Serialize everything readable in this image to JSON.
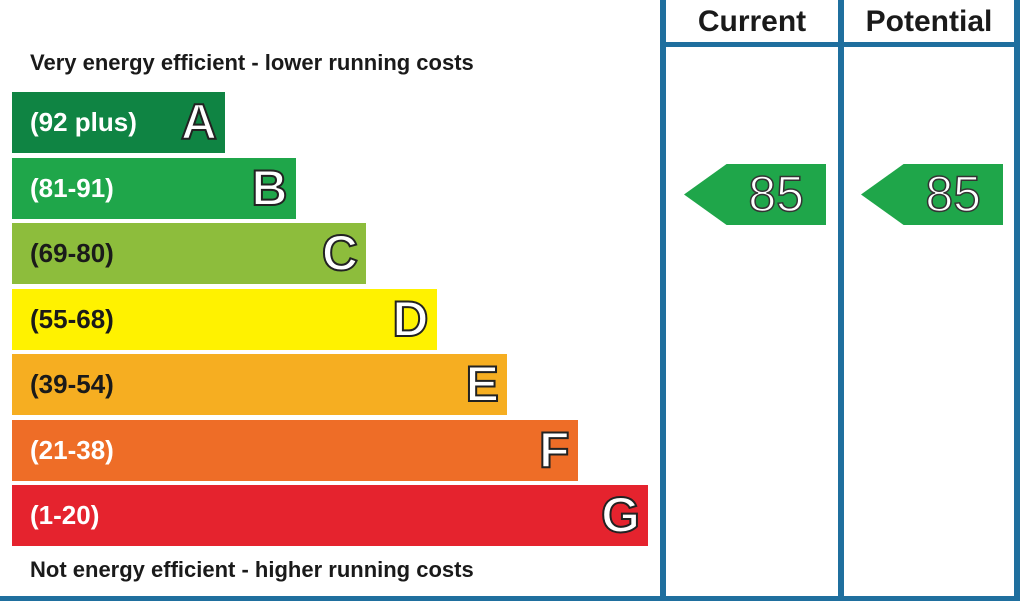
{
  "captions": {
    "top": "Very energy efficient - lower running costs",
    "bottom": "Not energy efficient - higher running costs"
  },
  "columns": {
    "current": "Current",
    "potential": "Potential"
  },
  "chart_data": {
    "type": "bar",
    "categories": [
      "A",
      "B",
      "C",
      "D",
      "E",
      "F",
      "G"
    ],
    "range_labels": [
      "(92 plus)",
      "(81-91)",
      "(69-80)",
      "(55-68)",
      "(39-54)",
      "(21-38)",
      "(1-20)"
    ],
    "band_colors": [
      "#0f8443",
      "#1fa64a",
      "#8dbd3c",
      "#fff200",
      "#f6ae21",
      "#ee6d27",
      "#e5232e"
    ],
    "current_rating": {
      "value": "85",
      "band": "B",
      "color": "#1fa64a"
    },
    "potential_rating": {
      "value": "85",
      "band": "B",
      "color": "#1fa64a"
    }
  }
}
